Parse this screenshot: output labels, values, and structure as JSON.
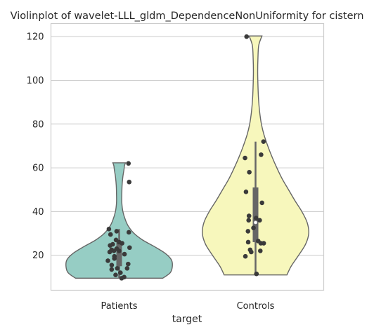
{
  "chart_data": {
    "type": "violin",
    "title": "Violinplot of wavelet-LLL_gldm_DependenceNonUniformity for cistern",
    "xlabel": "target",
    "ylabel": "",
    "categories": [
      "Patients",
      "Controls"
    ],
    "ylim": [
      4,
      126
    ],
    "yticks": [
      20,
      40,
      60,
      80,
      100,
      120
    ],
    "grid": true,
    "legend": "none",
    "colors": {
      "Patients": "#96cdc4",
      "Controls": "#f7f7bc"
    },
    "series": [
      {
        "category": "Patients",
        "min": 9.5,
        "q1": 15,
        "median": 22,
        "q3": 26,
        "max": 32,
        "violin_profile": [
          [
            9.5,
            0.82
          ],
          [
            12,
            0.96
          ],
          [
            15,
            1.0
          ],
          [
            18,
            0.98
          ],
          [
            21,
            0.86
          ],
          [
            24,
            0.66
          ],
          [
            27,
            0.44
          ],
          [
            30,
            0.28
          ],
          [
            33,
            0.18
          ],
          [
            36,
            0.12
          ],
          [
            40,
            0.07
          ],
          [
            44,
            0.05
          ],
          [
            48,
            0.05
          ],
          [
            52,
            0.055
          ],
          [
            56,
            0.07
          ],
          [
            59,
            0.09
          ],
          [
            61,
            0.1
          ],
          [
            62.3,
            0.12
          ]
        ],
        "points": [
          62,
          53.5,
          32,
          31,
          30.5,
          29.5,
          27,
          26,
          25.5,
          25,
          24.5,
          23.5,
          23,
          22.5,
          22,
          22,
          21.5,
          20.5,
          19.5,
          18.5,
          17.5,
          16,
          15.5,
          14,
          14,
          13.5,
          12,
          11,
          10,
          9.5
        ]
      },
      {
        "category": "Controls",
        "min": 11,
        "q1": 26,
        "median": 35,
        "q3": 51,
        "max": 72,
        "violin_profile": [
          [
            11,
            0.59
          ],
          [
            15,
            0.67
          ],
          [
            20,
            0.81
          ],
          [
            25,
            0.94
          ],
          [
            30,
            1.0
          ],
          [
            35,
            0.97
          ],
          [
            40,
            0.87
          ],
          [
            45,
            0.74
          ],
          [
            50,
            0.62
          ],
          [
            55,
            0.5
          ],
          [
            60,
            0.4
          ],
          [
            65,
            0.31
          ],
          [
            70,
            0.23
          ],
          [
            75,
            0.16
          ],
          [
            80,
            0.11
          ],
          [
            86,
            0.075
          ],
          [
            92,
            0.055
          ],
          [
            98,
            0.045
          ],
          [
            104,
            0.04
          ],
          [
            110,
            0.045
          ],
          [
            116,
            0.06
          ],
          [
            120.3,
            0.12
          ]
        ],
        "points": [
          120,
          72,
          66,
          64.5,
          58,
          49,
          44,
          38,
          37,
          36,
          36,
          32.5,
          31,
          26.5,
          26,
          25.5,
          25.5,
          22.5,
          22,
          21.5,
          19.5,
          11.5
        ]
      }
    ]
  }
}
